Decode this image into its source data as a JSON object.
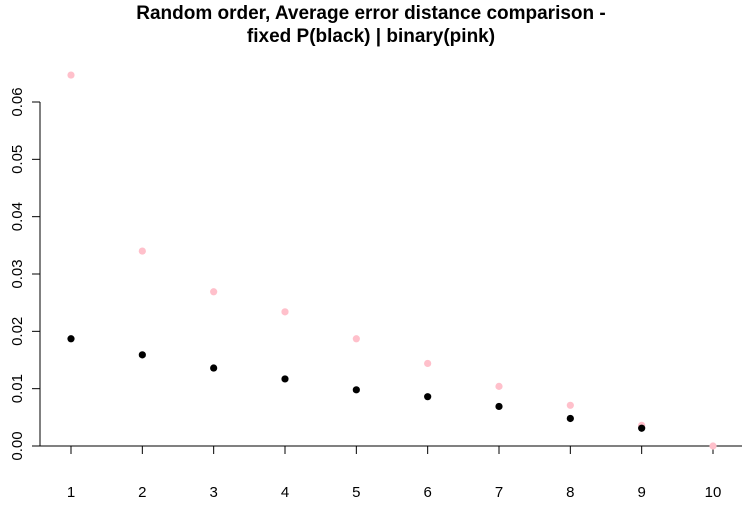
{
  "title_lines": [
    "Random order, Average error distance comparison -",
    "fixed P(black) | binary(pink)"
  ],
  "chart_data": {
    "type": "scatter",
    "title": "Random order, Average error distance comparison - fixed P(black) | binary(pink)",
    "xlabel": "",
    "ylabel": "",
    "x_ticks": [
      "1",
      "2",
      "3",
      "4",
      "5",
      "6",
      "7",
      "8",
      "9",
      "10"
    ],
    "y_ticks": [
      "0.00",
      "0.01",
      "0.02",
      "0.03",
      "0.04",
      "0.05",
      "0.06"
    ],
    "xlim": [
      1,
      10
    ],
    "ylim": [
      0,
      0.06
    ],
    "grid": false,
    "legend": "none",
    "series": [
      {
        "color": "#ffc0cb",
        "x": [
          1,
          2,
          3,
          4,
          5,
          6,
          7,
          8,
          9,
          10
        ],
        "y": [
          0.0647,
          0.034,
          0.0269,
          0.0234,
          0.0187,
          0.0144,
          0.0104,
          0.0071,
          0.0036,
          0.0
        ]
      },
      {
        "color": "#000000",
        "x": [
          1,
          2,
          3,
          4,
          5,
          6,
          7,
          8,
          9
        ],
        "y": [
          0.0187,
          0.0159,
          0.0136,
          0.0117,
          0.0098,
          0.0086,
          0.0069,
          0.0048,
          0.0031
        ]
      }
    ]
  }
}
